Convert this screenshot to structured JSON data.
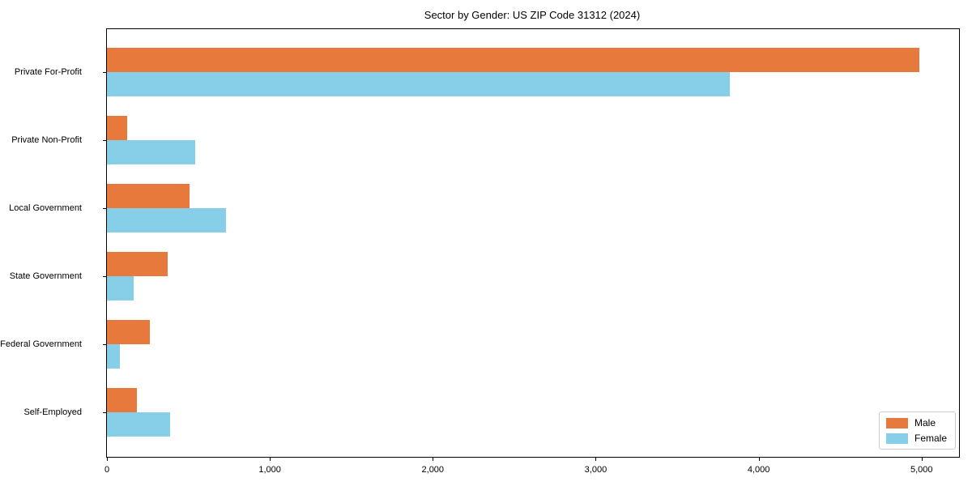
{
  "chart_data": {
    "type": "bar",
    "orientation": "horizontal",
    "title": "Sector by Gender: US ZIP Code 31312 (2024)",
    "categories": [
      "Private For-Profit",
      "Private Non-Profit",
      "Local Government",
      "State Government",
      "Federal Government",
      "Self-Employed"
    ],
    "series": [
      {
        "name": "Male",
        "color": "#E8793D",
        "values": [
          4985,
          125,
          505,
          375,
          265,
          185
        ]
      },
      {
        "name": "Female",
        "color": "#87CEE8",
        "values": [
          3825,
          540,
          730,
          165,
          80,
          390
        ]
      }
    ],
    "xlim": [
      0,
      5230
    ],
    "xticks": [
      0,
      1000,
      2000,
      3000,
      4000,
      5000
    ],
    "xtick_labels": [
      "0",
      "1,000",
      "2,000",
      "3,000",
      "4,000",
      "5,000"
    ],
    "xlabel": "",
    "ylabel": "",
    "grid": false,
    "legend_position": "lower right"
  }
}
